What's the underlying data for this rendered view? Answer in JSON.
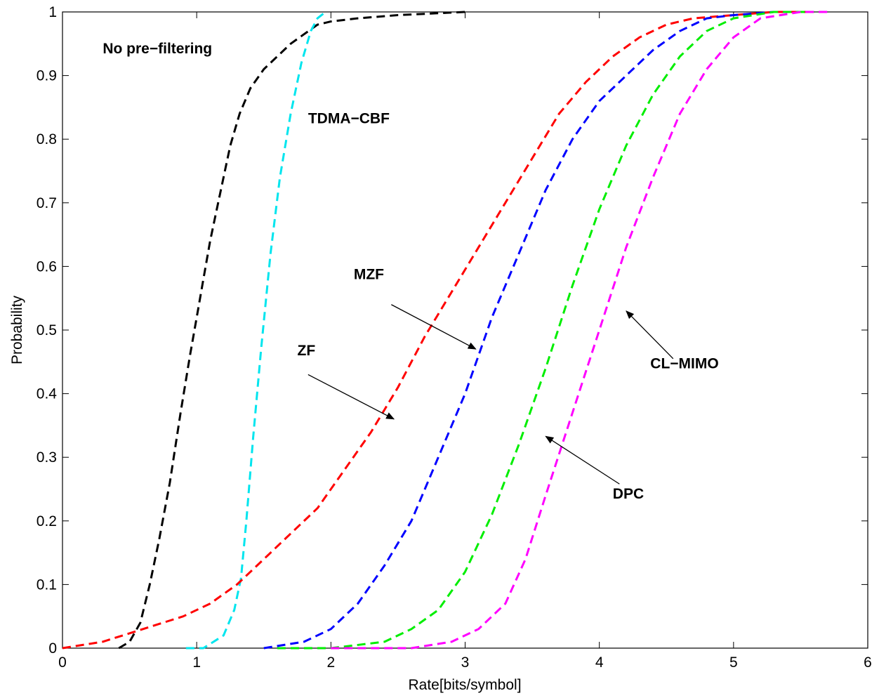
{
  "chart_data": {
    "type": "line",
    "title": "",
    "xlabel": "Rate[bits/symbol]",
    "ylabel": "Probability",
    "xlim": [
      0,
      6
    ],
    "ylim": [
      0,
      1
    ],
    "xticks": [
      0,
      1,
      2,
      3,
      4,
      5,
      6
    ],
    "yticks": [
      0,
      0.1,
      0.2,
      0.3,
      0.4,
      0.5,
      0.6,
      0.7,
      0.8,
      0.9,
      1
    ],
    "grid": false,
    "legend": "none",
    "line_style": "dashed",
    "series": [
      {
        "color": "#000000",
        "x": [
          0.42,
          0.5,
          0.58,
          0.65,
          0.72,
          0.8,
          0.88,
          0.95,
          1.0,
          1.05,
          1.1,
          1.15,
          1.2,
          1.25,
          1.32,
          1.4,
          1.5,
          1.6,
          1.7,
          1.8,
          1.9,
          2.0,
          2.2,
          2.5,
          2.8,
          3.0
        ],
        "y": [
          0.0,
          0.01,
          0.04,
          0.1,
          0.17,
          0.26,
          0.37,
          0.46,
          0.52,
          0.58,
          0.64,
          0.69,
          0.74,
          0.79,
          0.84,
          0.88,
          0.91,
          0.93,
          0.95,
          0.965,
          0.98,
          0.985,
          0.99,
          0.995,
          0.998,
          1.0
        ]
      },
      {
        "color": "#00e5ee",
        "x": [
          0.92,
          1.05,
          1.2,
          1.28,
          1.33,
          1.37,
          1.42,
          1.48,
          1.55,
          1.62,
          1.7,
          1.78,
          1.85,
          1.9,
          1.96
        ],
        "y": [
          0.0,
          0.0,
          0.02,
          0.06,
          0.11,
          0.2,
          0.33,
          0.47,
          0.62,
          0.74,
          0.84,
          0.92,
          0.97,
          0.99,
          1.0
        ]
      },
      {
        "color": "#ff0000",
        "x": [
          0.0,
          0.3,
          0.6,
          0.9,
          1.1,
          1.3,
          1.5,
          1.7,
          1.9,
          2.1,
          2.3,
          2.5,
          2.7,
          2.9,
          3.1,
          3.3,
          3.5,
          3.7,
          3.9,
          4.1,
          4.3,
          4.5,
          4.7,
          5.0,
          5.3,
          5.6
        ],
        "y": [
          0.0,
          0.01,
          0.03,
          0.05,
          0.07,
          0.1,
          0.14,
          0.18,
          0.22,
          0.28,
          0.34,
          0.41,
          0.49,
          0.56,
          0.63,
          0.7,
          0.77,
          0.84,
          0.89,
          0.93,
          0.96,
          0.98,
          0.99,
          0.995,
          1.0,
          1.0
        ]
      },
      {
        "color": "#0000ff",
        "x": [
          1.5,
          1.8,
          2.0,
          2.2,
          2.4,
          2.6,
          2.8,
          3.0,
          3.2,
          3.4,
          3.6,
          3.8,
          4.0,
          4.2,
          4.4,
          4.6,
          4.8,
          5.0,
          5.3,
          5.6
        ],
        "y": [
          0.0,
          0.01,
          0.03,
          0.07,
          0.13,
          0.2,
          0.3,
          0.4,
          0.52,
          0.62,
          0.72,
          0.8,
          0.86,
          0.9,
          0.94,
          0.97,
          0.99,
          0.995,
          1.0,
          1.0
        ]
      },
      {
        "color": "#00ee00",
        "x": [
          1.6,
          2.0,
          2.4,
          2.6,
          2.8,
          3.0,
          3.2,
          3.4,
          3.6,
          3.8,
          4.0,
          4.2,
          4.4,
          4.6,
          4.8,
          5.0,
          5.3,
          5.6
        ],
        "y": [
          0.0,
          0.0,
          0.01,
          0.03,
          0.06,
          0.12,
          0.21,
          0.32,
          0.44,
          0.57,
          0.69,
          0.79,
          0.87,
          0.93,
          0.97,
          0.99,
          1.0,
          1.0
        ]
      },
      {
        "color": "#ff00ff",
        "x": [
          2.0,
          2.6,
          2.9,
          3.1,
          3.3,
          3.45,
          3.6,
          3.8,
          4.0,
          4.2,
          4.4,
          4.6,
          4.8,
          5.0,
          5.2,
          5.5,
          5.7
        ],
        "y": [
          0.0,
          0.0,
          0.01,
          0.03,
          0.07,
          0.14,
          0.24,
          0.37,
          0.5,
          0.63,
          0.74,
          0.84,
          0.91,
          0.96,
          0.99,
          1.0,
          1.0
        ]
      }
    ],
    "annotations": [
      {
        "text": "No pre−filtering",
        "x": 0.3,
        "y": 0.935,
        "arrow": false
      },
      {
        "text": "TDMA−CBF",
        "x": 1.83,
        "y": 0.825,
        "arrow": false
      },
      {
        "text": "MZF",
        "x": 2.17,
        "y": 0.58,
        "arrow": true,
        "tail": [
          2.45,
          0.54
        ],
        "head": [
          3.08,
          0.47
        ]
      },
      {
        "text": "ZF",
        "x": 1.75,
        "y": 0.46,
        "arrow": true,
        "tail": [
          1.83,
          0.43
        ],
        "head": [
          2.47,
          0.36
        ]
      },
      {
        "text": "CL−MIMO",
        "x": 4.38,
        "y": 0.44,
        "arrow": true,
        "tail": [
          4.55,
          0.455
        ],
        "head": [
          4.2,
          0.53
        ]
      },
      {
        "text": "DPC",
        "x": 4.1,
        "y": 0.235,
        "arrow": true,
        "tail": [
          4.15,
          0.258
        ],
        "head": [
          3.6,
          0.333
        ]
      }
    ]
  }
}
